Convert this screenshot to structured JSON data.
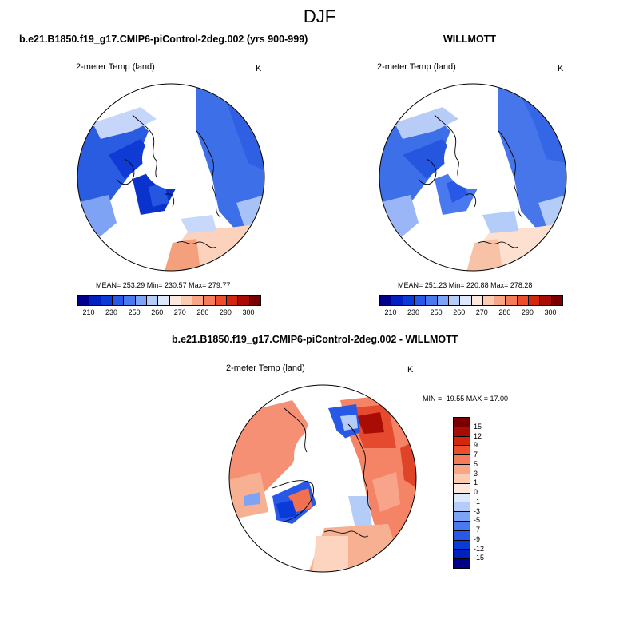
{
  "figure": {
    "title": "DJF"
  },
  "panel_left": {
    "title": "b.e21.B1850.f19_g17.CMIP6-piControl-2deg.002 (yrs 900-999)",
    "variable": "2-meter Temp (land)",
    "units": "K",
    "stats": "MEAN= 253.29  Min= 230.57  Max= 279.77"
  },
  "panel_right": {
    "title": "WILLMOTT",
    "variable": "2-meter Temp (land)",
    "units": "K",
    "stats": "MEAN= 251.23  Min= 220.88  Max= 278.28"
  },
  "panel_diff": {
    "title": "b.e21.B1850.f19_g17.CMIP6-piControl-2deg.002 - WILLMOTT",
    "variable": "2-meter Temp (land)",
    "units": "K",
    "stats": "MIN = -19.55 MAX =  17.00"
  },
  "colorbar_abs": {
    "colors": [
      "#00008a",
      "#0020c0",
      "#0a3ad8",
      "#2858e6",
      "#4a78ee",
      "#7ea2f4",
      "#b4ccf8",
      "#dce8fb",
      "#fde8dc",
      "#fbcbb2",
      "#f8a688",
      "#f57c5a",
      "#ee4c2a",
      "#d4250e",
      "#a80c04",
      "#7a0000"
    ],
    "tick_labels": [
      "210",
      "230",
      "250",
      "260",
      "270",
      "280",
      "290",
      "300"
    ]
  },
  "colorbar_diff": {
    "colors": [
      "#00008a",
      "#0020c0",
      "#0a3ad8",
      "#2858e6",
      "#4a78ee",
      "#7ea2f4",
      "#b4ccf8",
      "#dce8fb",
      "#fde8dc",
      "#fbcbb2",
      "#f8a688",
      "#f57c5a",
      "#ee4c2a",
      "#d4250e",
      "#a80c04",
      "#7a0000"
    ],
    "tick_labels": [
      "15",
      "12",
      "9",
      "7",
      "5",
      "3",
      "1",
      "0",
      "-1",
      "-3",
      "-5",
      "-7",
      "-9",
      "-12",
      "-15"
    ]
  }
}
